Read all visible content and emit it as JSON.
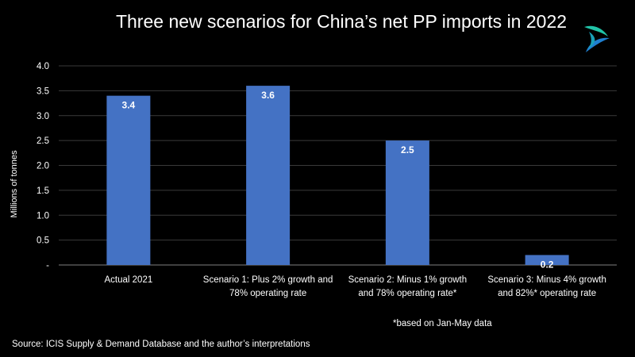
{
  "chart_data": {
    "type": "bar",
    "title": "Three new scenarios for China’s net PP imports in 2022",
    "ylabel": "Millions of tonnes",
    "xlabel": "",
    "categories": [
      [
        "Actual 2021"
      ],
      [
        "Scenario 1: Plus 2% growth and",
        "78% operating rate"
      ],
      [
        "Scenario 2: Minus 1% growth",
        "and 78% operating rate*"
      ],
      [
        "Scenario 3: Minus 4% growth",
        "and 82%* operating rate"
      ]
    ],
    "values": [
      3.4,
      3.6,
      2.5,
      0.2
    ],
    "data_labels": [
      "3.4",
      "3.6",
      "2.5",
      "0.2"
    ],
    "ylim": [
      0,
      4.0
    ],
    "yticks": [
      "-",
      "0.5",
      "1.0",
      "1.5",
      "2.0",
      "2.5",
      "3.0",
      "3.5",
      "4.0"
    ],
    "grid": true,
    "legend": "none",
    "colors": {
      "bar": "#4472C4",
      "background": "#000000",
      "grid": "#3a3a3a",
      "text": "#ffffff"
    }
  },
  "footnote": "*based on Jan-May data",
  "source": "Source: ICIS Supply & Demand Database and the author’s interpretations"
}
